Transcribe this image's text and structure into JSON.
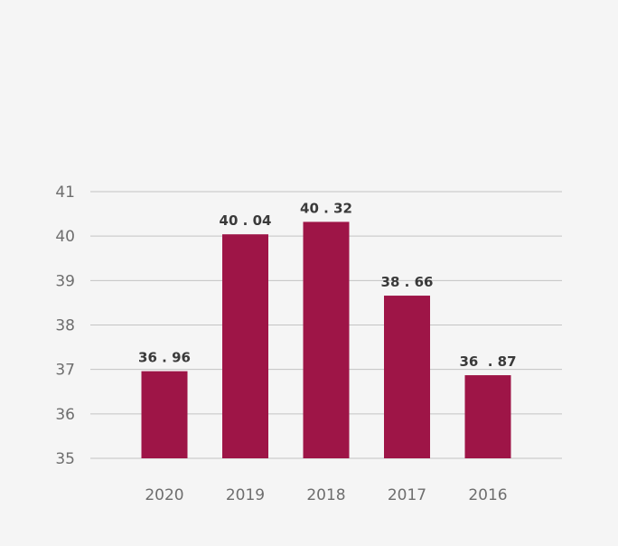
{
  "chart_data": {
    "type": "bar",
    "categories": [
      "2020",
      "2019",
      "2018",
      "2017",
      "2016"
    ],
    "values": [
      36.96,
      40.04,
      40.32,
      38.66,
      36.87
    ],
    "data_labels": [
      "36 . 96",
      "40 . 04",
      "40 . 32",
      "38 . 66",
      "36  . 87"
    ],
    "ylim": [
      35,
      41
    ],
    "yticks": [
      35,
      36,
      37,
      38,
      39,
      40,
      41
    ],
    "grid": true,
    "bar_color": "#9e1547",
    "title": "",
    "xlabel": "",
    "ylabel": ""
  }
}
